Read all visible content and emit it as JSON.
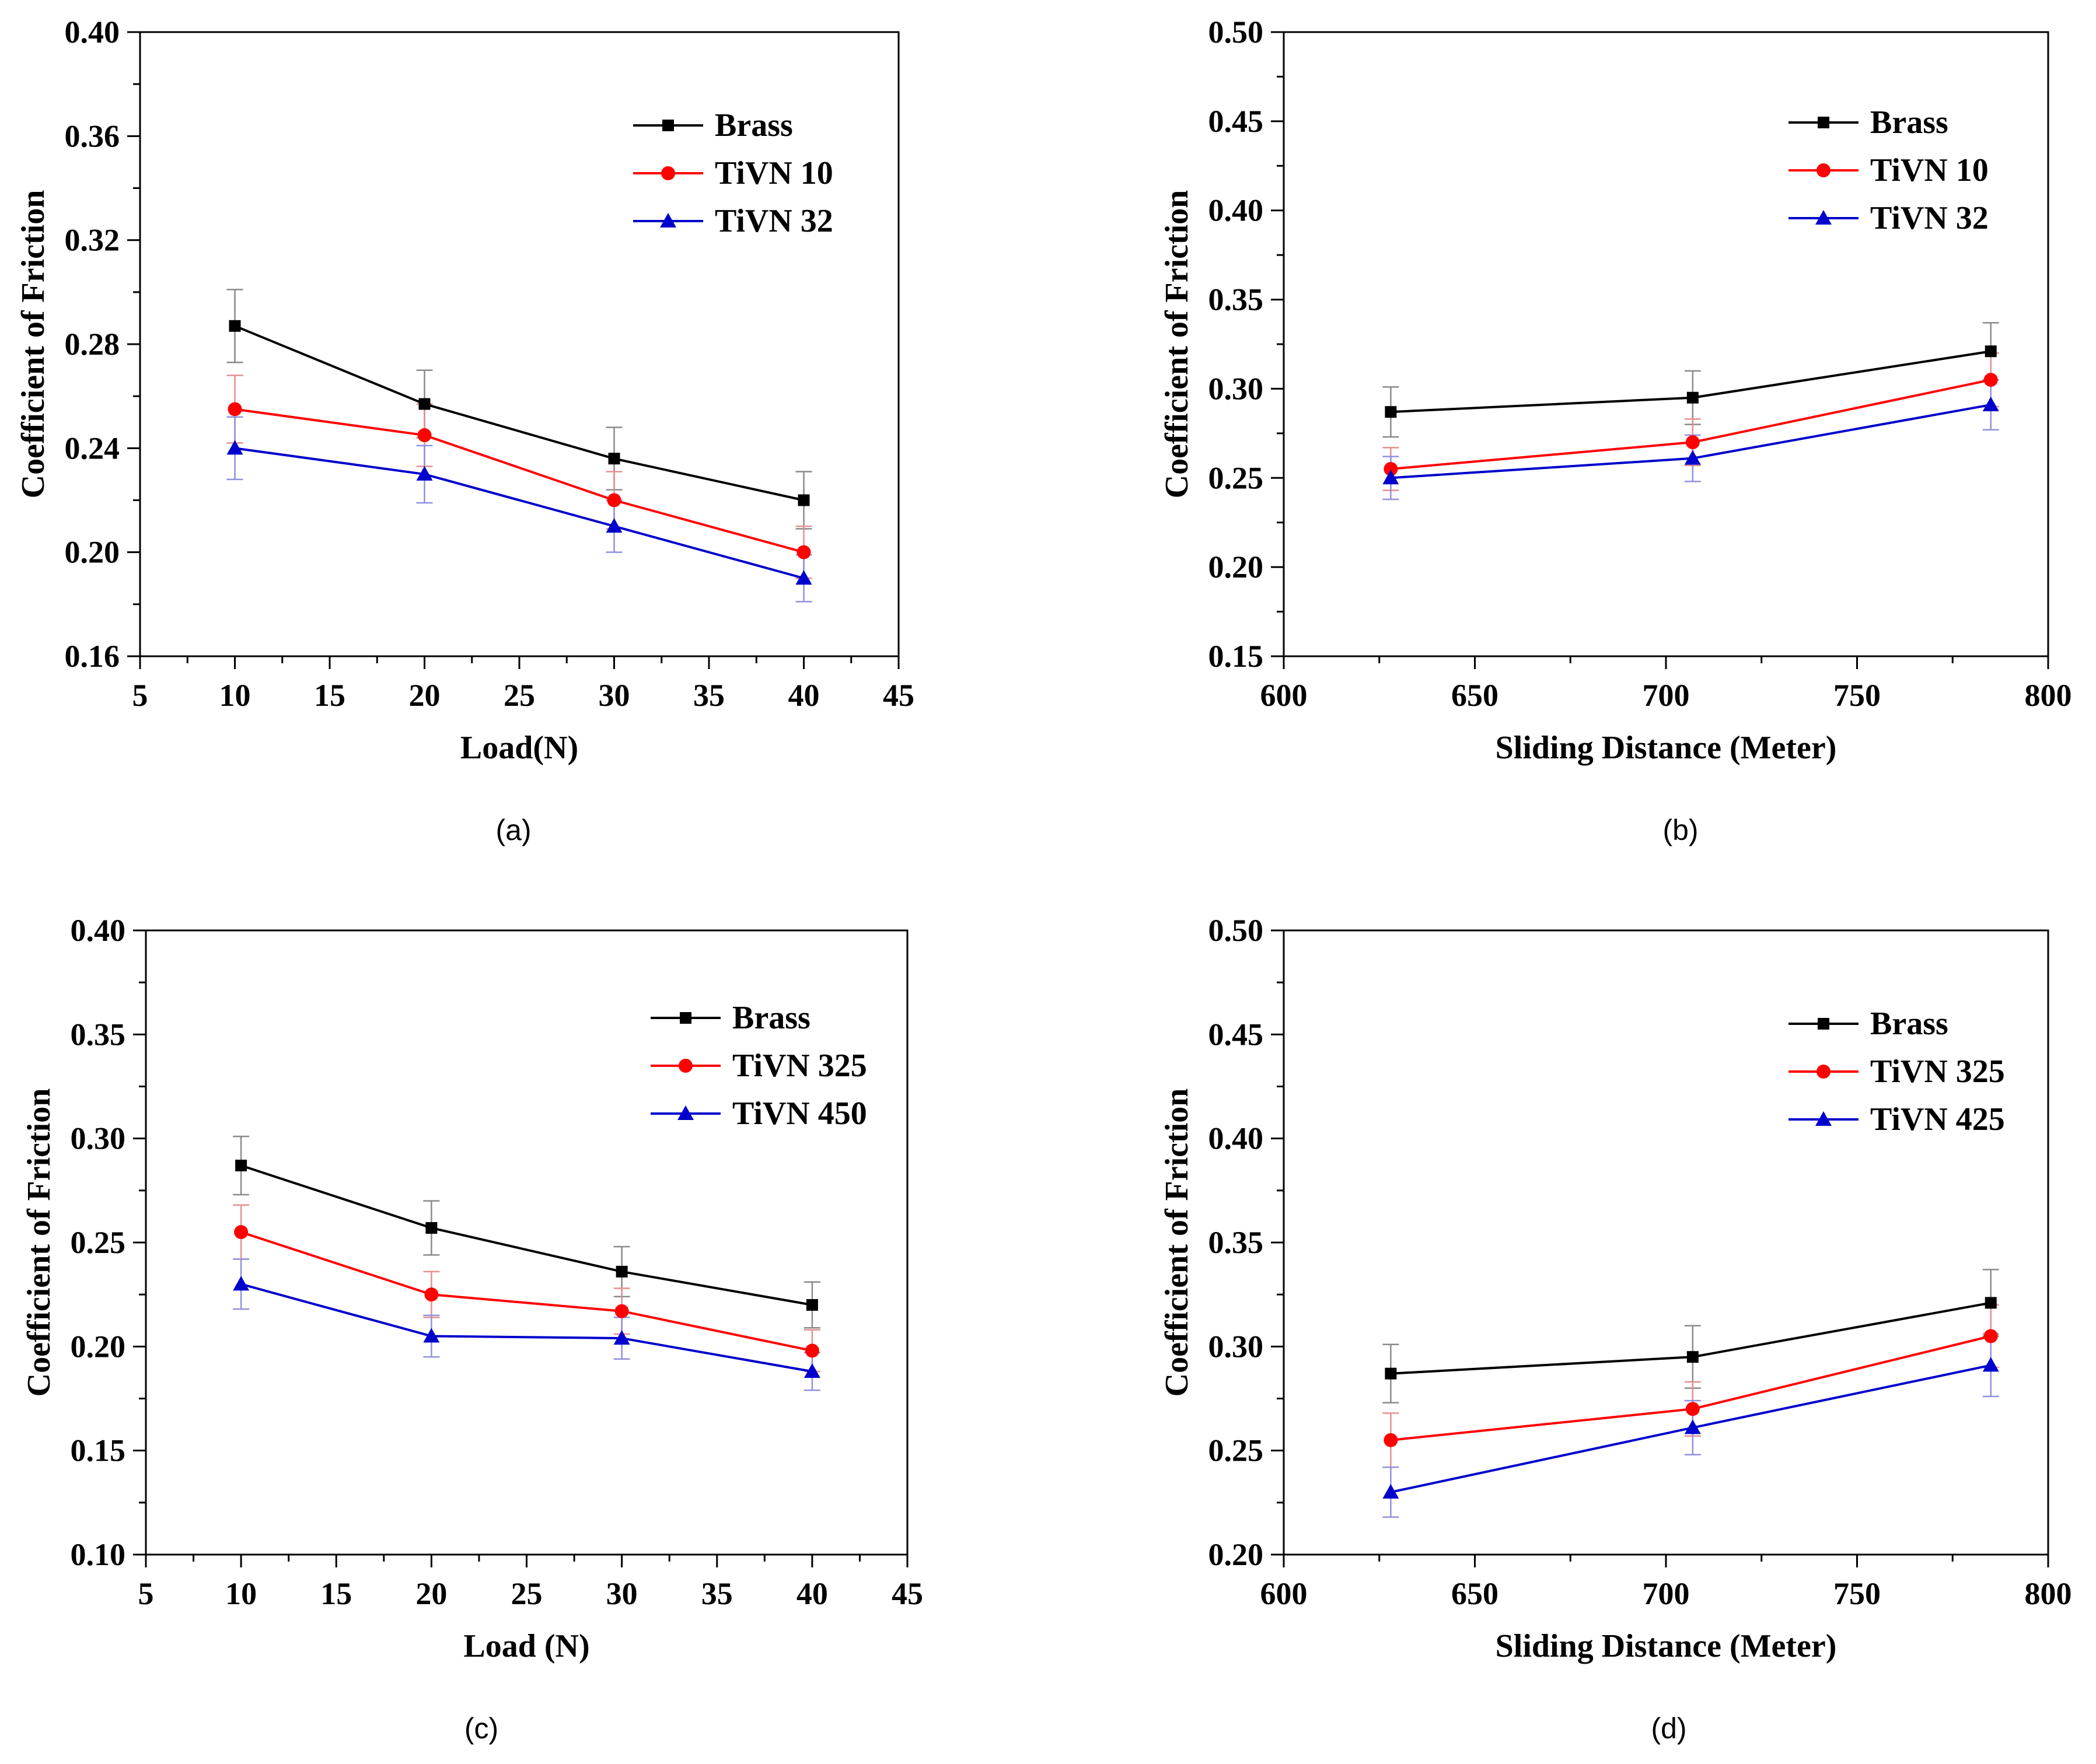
{
  "colors": {
    "Brass": "#000000",
    "TiVN": "#ff0000",
    "TiVN_blue": "#0000cc",
    "error_black": "#999999",
    "error_red": "#e89a9a",
    "error_blue": "#9a9ae0"
  },
  "chart_data": [
    {
      "type": "line",
      "panel": "(a)",
      "xlabel": "Load(N)",
      "ylabel": "Coefficient of Friction",
      "xlim": [
        5,
        45
      ],
      "ylim": [
        0.16,
        0.4
      ],
      "xticks": [
        5,
        10,
        15,
        20,
        25,
        30,
        35,
        40,
        45
      ],
      "yticks": [
        0.16,
        0.2,
        0.24,
        0.28,
        0.32,
        0.36,
        0.4
      ],
      "ytick_labels": [
        "0.16",
        "0.20",
        "0.24",
        "0.28",
        "0.32",
        "0.36",
        "0.40"
      ],
      "x": [
        10,
        20,
        30,
        40
      ],
      "legend_position": "top-right",
      "series": [
        {
          "name": "Brass",
          "color": "#000000",
          "marker": "square",
          "values": [
            0.287,
            0.257,
            0.236,
            0.22
          ],
          "err": [
            0.014,
            0.013,
            0.012,
            0.011
          ]
        },
        {
          "name": "TiVN 10",
          "color": "#ff0000",
          "marker": "circle",
          "values": [
            0.255,
            0.245,
            0.22,
            0.2
          ],
          "err": [
            0.013,
            0.012,
            0.011,
            0.01
          ]
        },
        {
          "name": "TiVN 32",
          "color": "#0000cc",
          "marker": "triangle",
          "values": [
            0.24,
            0.23,
            0.21,
            0.19
          ],
          "err": [
            0.012,
            0.011,
            0.01,
            0.009
          ]
        }
      ]
    },
    {
      "type": "line",
      "panel": "(b)",
      "xlabel": "Sliding Distance (Meter)",
      "ylabel": "Coefficient of Friction",
      "xlim": [
        600,
        800
      ],
      "ylim": [
        0.15,
        0.5
      ],
      "xticks": [
        600,
        650,
        700,
        750,
        800
      ],
      "yticks": [
        0.15,
        0.2,
        0.25,
        0.3,
        0.35,
        0.4,
        0.45,
        0.5
      ],
      "ytick_labels": [
        "0.15",
        "0.20",
        "0.25",
        "0.30",
        "0.35",
        "0.40",
        "0.45",
        "0.50"
      ],
      "x": [
        628,
        707,
        785
      ],
      "legend_position": "top-right",
      "series": [
        {
          "name": "Brass",
          "color": "#000000",
          "marker": "square",
          "values": [
            0.287,
            0.295,
            0.321
          ],
          "err": [
            0.014,
            0.015,
            0.016
          ]
        },
        {
          "name": "TiVN 10",
          "color": "#ff0000",
          "marker": "circle",
          "values": [
            0.255,
            0.27,
            0.305
          ],
          "err": [
            0.012,
            0.013,
            0.015
          ]
        },
        {
          "name": "TiVN 32",
          "color": "#0000cc",
          "marker": "triangle",
          "values": [
            0.25,
            0.261,
            0.291
          ],
          "err": [
            0.012,
            0.013,
            0.014
          ]
        }
      ]
    },
    {
      "type": "line",
      "panel": "(c)",
      "xlabel": "Load (N)",
      "ylabel": "Coefficient of Friction",
      "xlim": [
        5,
        45
      ],
      "ylim": [
        0.1,
        0.4
      ],
      "xticks": [
        5,
        10,
        15,
        20,
        25,
        30,
        35,
        40,
        45
      ],
      "yticks": [
        0.1,
        0.15,
        0.2,
        0.25,
        0.3,
        0.35,
        0.4
      ],
      "ytick_labels": [
        "0.10",
        "0.15",
        "0.20",
        "0.25",
        "0.30",
        "0.35",
        "0.40"
      ],
      "x": [
        10,
        20,
        30,
        40
      ],
      "legend_position": "top-right",
      "series": [
        {
          "name": "Brass",
          "color": "#000000",
          "marker": "square",
          "values": [
            0.287,
            0.257,
            0.236,
            0.22
          ],
          "err": [
            0.014,
            0.013,
            0.012,
            0.011
          ]
        },
        {
          "name": "TiVN 325",
          "color": "#ff0000",
          "marker": "circle",
          "values": [
            0.255,
            0.225,
            0.217,
            0.198
          ],
          "err": [
            0.013,
            0.011,
            0.011,
            0.01
          ]
        },
        {
          "name": "TiVN 450",
          "color": "#0000cc",
          "marker": "triangle",
          "values": [
            0.23,
            0.205,
            0.204,
            0.188
          ],
          "err": [
            0.012,
            0.01,
            0.01,
            0.009
          ]
        }
      ]
    },
    {
      "type": "line",
      "panel": "(d)",
      "xlabel": "Sliding Distance (Meter)",
      "ylabel": "Coefficient of Friction",
      "xlim": [
        600,
        800
      ],
      "ylim": [
        0.2,
        0.5
      ],
      "xticks": [
        600,
        650,
        700,
        750,
        800
      ],
      "yticks": [
        0.2,
        0.25,
        0.3,
        0.35,
        0.4,
        0.45,
        0.5
      ],
      "ytick_labels": [
        "0.20",
        "0.25",
        "0.30",
        "0.35",
        "0.40",
        "0.45",
        "0.50"
      ],
      "x": [
        628,
        707,
        785
      ],
      "legend_position": "top-right",
      "series": [
        {
          "name": "Brass",
          "color": "#000000",
          "marker": "square",
          "values": [
            0.287,
            0.295,
            0.321
          ],
          "err": [
            0.014,
            0.015,
            0.016
          ]
        },
        {
          "name": "TiVN 325",
          "color": "#ff0000",
          "marker": "circle",
          "values": [
            0.255,
            0.27,
            0.305
          ],
          "err": [
            0.013,
            0.013,
            0.015
          ]
        },
        {
          "name": "TiVN 425",
          "color": "#0000cc",
          "marker": "triangle",
          "values": [
            0.23,
            0.261,
            0.291
          ],
          "err": [
            0.012,
            0.013,
            0.015
          ]
        }
      ]
    }
  ]
}
